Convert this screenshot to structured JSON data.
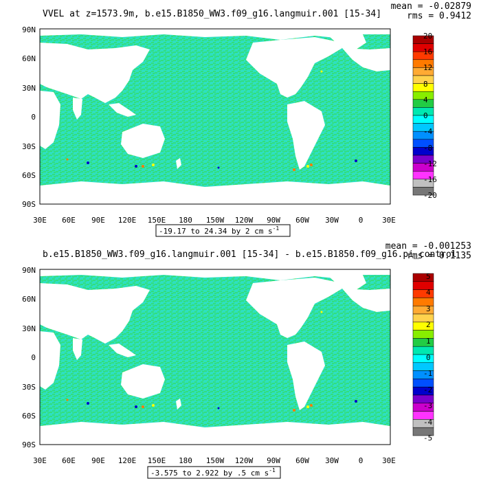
{
  "panels": [
    {
      "title": "VVEL at z=1573.9m, b.e15.B1850_WW3.f09_g16.langmuir.001 [15-34]",
      "mean_text": "mean = -0.02879",
      "rms_text": "rms = 0.9412",
      "range_text": "-19.17 to 24.34 by 2 cm s",
      "range_exponent": "-1",
      "colorbar_labels": [
        "20",
        "16",
        "12",
        "8",
        "4",
        "0",
        "-4",
        "-8",
        "-12",
        "-16",
        "-20"
      ],
      "lat_labels": [
        "90N",
        "60N",
        "30N",
        "0",
        "30S",
        "60S",
        "90S"
      ],
      "lon_labels": [
        "30E",
        "60E",
        "90E",
        "120E",
        "150E",
        "180",
        "150W",
        "120W",
        "90W",
        "60W",
        "30W",
        "0",
        "30E"
      ]
    },
    {
      "title": "b.e15.B1850_WW3.f09_g16.langmuir.001 [15-34] - b.e15.B1850.f09_g16.pi_control",
      "mean_text": "mean = -0.001253",
      "rms_text": "rms = 0.1135",
      "range_text": "-3.575 to 2.922 by .5 cm s",
      "range_exponent": "-1",
      "colorbar_labels": [
        "5",
        "4",
        "3",
        "2",
        "1",
        "0",
        "-1",
        "-2",
        "-3",
        "-4",
        "-5"
      ],
      "lat_labels": [
        "90N",
        "60N",
        "30N",
        "0",
        "30S",
        "60S",
        "90S"
      ],
      "lon_labels": [
        "30E",
        "60E",
        "90E",
        "120E",
        "150E",
        "180",
        "150W",
        "120W",
        "90W",
        "60W",
        "30W",
        "0",
        "30E"
      ]
    }
  ],
  "colors": {
    "ocean_base": "#2ee0c0",
    "ocean_texture": "#33dd55",
    "land": "#ffffff",
    "colorbar": [
      "#aa0000",
      "#e00000",
      "#ff3a00",
      "#ff7a00",
      "#ffaa33",
      "#ffd24d",
      "#ffff00",
      "#88ee00",
      "#22cc44",
      "#00e8b0",
      "#00ffff",
      "#00c8ff",
      "#0090ff",
      "#0050ff",
      "#0000cc",
      "#7a00cc",
      "#cc00cc",
      "#ff33ff",
      "#c0c0c0",
      "#777777"
    ]
  }
}
